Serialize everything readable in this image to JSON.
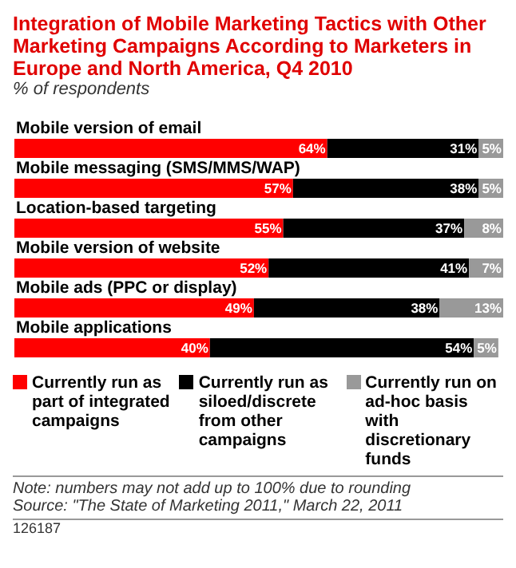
{
  "chart_data": {
    "type": "bar",
    "orientation": "horizontal",
    "stacked": true,
    "title": "Integration of Mobile Marketing Tactics with Other Marketing Campaigns According to Marketers in Europe and North America, Q4 2010",
    "subtitle": "% of respondents",
    "categories": [
      "Mobile version of email",
      "Mobile messaging (SMS/MMS/WAP)",
      "Location-based targeting",
      "Mobile version of website",
      "Mobile ads (PPC or display)",
      "Mobile applications"
    ],
    "series": [
      {
        "name": "Currently run as part of integrated campaigns",
        "color": "#ff0000",
        "values": [
          64,
          57,
          55,
          52,
          49,
          40
        ],
        "value_labels": [
          "64%",
          "57%",
          "55%",
          "52%",
          "49%",
          "40%"
        ]
      },
      {
        "name": "Currently run as siloed/discrete from other campaigns",
        "color": "#000000",
        "values": [
          31,
          38,
          37,
          41,
          38,
          54
        ],
        "value_labels": [
          "31%",
          "38%",
          "37%",
          "41%",
          "38%",
          "54%"
        ]
      },
      {
        "name": "Currently run on ad-hoc basis with discretionary funds",
        "color": "#999999",
        "values": [
          5,
          5,
          8,
          7,
          13,
          5
        ],
        "value_labels": [
          "5%",
          "5%",
          "8%",
          "7%",
          "13%",
          "5%"
        ]
      }
    ],
    "legend": "bottom",
    "tick_labels": "y",
    "annotations": [
      "Note: numbers may not add up to 100% due to rounding",
      "Source: \"The State of Marketing 2011,\" March 22, 2011",
      "126187"
    ]
  }
}
